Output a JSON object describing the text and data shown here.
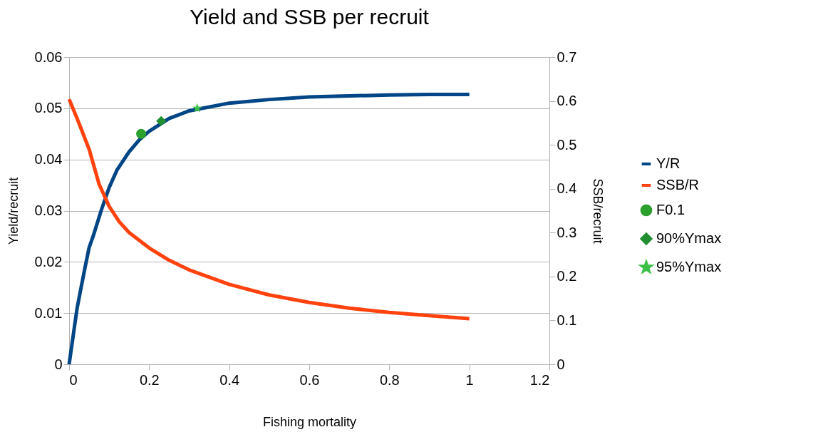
{
  "chart_data": {
    "type": "line",
    "title": "Yield and SSB per recruit",
    "xlabel": "Fishing mortality",
    "ylabel": "Yield/recruit",
    "y2label": "SSB/recruit",
    "xlim": [
      0,
      1.2
    ],
    "xticks": [
      0,
      0.2,
      0.4,
      0.6,
      0.8,
      1,
      1.2
    ],
    "ylim": [
      0,
      0.06
    ],
    "yticks": [
      0,
      0.01,
      0.02,
      0.03,
      0.04,
      0.05,
      0.06
    ],
    "y2lim": [
      0,
      0.7
    ],
    "y2ticks": [
      0,
      0.1,
      0.2,
      0.3,
      0.4,
      0.5,
      0.6,
      0.7
    ],
    "grid": "y",
    "legend": "right",
    "series": [
      {
        "name": "Y/R",
        "type": "line",
        "color": "#004586",
        "x": [
          0,
          0.02,
          0.04,
          0.05,
          0.06,
          0.08,
          0.1,
          0.12,
          0.15,
          0.175,
          0.2,
          0.25,
          0.3,
          0.4,
          0.5,
          0.6,
          0.7,
          0.8,
          0.9,
          1
        ],
        "values": [
          0,
          0.011,
          0.019,
          0.0228,
          0.025,
          0.03,
          0.0345,
          0.038,
          0.0415,
          0.0438,
          0.0455,
          0.048,
          0.0495,
          0.051,
          0.0517,
          0.0522,
          0.0524,
          0.0526,
          0.0527,
          0.0527
        ]
      },
      {
        "name": "SSB/R",
        "type": "line",
        "axis": "y2",
        "color": "#ff420e",
        "x": [
          0,
          0.02,
          0.05,
          0.075,
          0.1,
          0.125,
          0.15,
          0.2,
          0.25,
          0.3,
          0.4,
          0.5,
          0.6,
          0.7,
          0.8,
          0.9,
          1
        ],
        "values": [
          0.604,
          0.56,
          0.49,
          0.41,
          0.36,
          0.325,
          0.3,
          0.265,
          0.237,
          0.215,
          0.182,
          0.158,
          0.141,
          0.128,
          0.118,
          0.111,
          0.104
        ]
      },
      {
        "name": "F0.1",
        "type": "scatter",
        "marker": "circle",
        "color": "#2ca02c",
        "x": [
          0.18
        ],
        "values": [
          0.045
        ]
      },
      {
        "name": "90%Ymax",
        "type": "scatter",
        "marker": "diamond",
        "color": "#1f8f2f",
        "x": [
          0.23
        ],
        "values": [
          0.0475
        ]
      },
      {
        "name": "95%Ymax",
        "type": "scatter",
        "marker": "star",
        "color": "#3cc04a",
        "x": [
          0.32
        ],
        "values": [
          0.05
        ]
      }
    ]
  }
}
